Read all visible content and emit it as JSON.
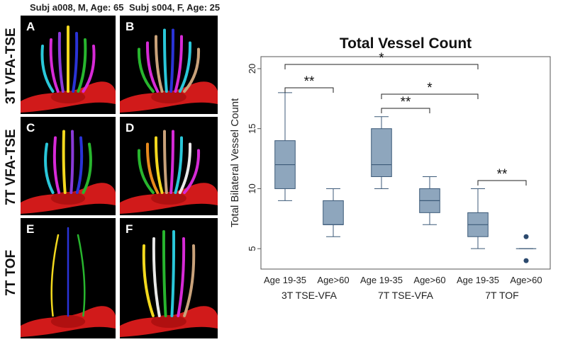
{
  "figure": {
    "columns": [
      {
        "header": "Subj a008, M, Age: 65"
      },
      {
        "header": "Subj s004, F, Age: 25"
      }
    ],
    "rows": [
      {
        "label": "3T VFA-TSE"
      },
      {
        "label": "7T VFA-TSE"
      },
      {
        "label": "7T TOF"
      }
    ],
    "panels": [
      {
        "letter": "A",
        "vessels": [
          "cyan",
          "magenta",
          "purple",
          "yellow",
          "blue",
          "green",
          "magenta"
        ]
      },
      {
        "letter": "B",
        "vessels": [
          "green",
          "magenta",
          "tan",
          "cyan",
          "blue",
          "magenta",
          "cyan",
          "tan"
        ]
      },
      {
        "letter": "C",
        "vessels": [
          "cyan",
          "magenta",
          "yellow",
          "purple",
          "blue",
          "green"
        ]
      },
      {
        "letter": "D",
        "vessels": [
          "green",
          "orange",
          "yellow",
          "tan",
          "magenta",
          "cyan",
          "white",
          "magenta"
        ]
      },
      {
        "letter": "E",
        "vessels": [
          "yellow",
          "blue",
          "green"
        ]
      },
      {
        "letter": "F",
        "vessels": [
          "yellow",
          "white",
          "green",
          "cyan",
          "magenta",
          "tan"
        ]
      }
    ],
    "colors": {
      "red": "#d11a1a",
      "yellow": "#f2d81e",
      "cyan": "#2ac7d9",
      "magenta": "#d62ad6",
      "purple": "#8a3ad8",
      "blue": "#2a33d6",
      "green": "#28b52e",
      "tan": "#c9a27a",
      "orange": "#e88a1c",
      "white": "#e8e8e8"
    }
  },
  "chart_data": {
    "type": "box",
    "title": "Total Vessel Count",
    "ylabel": "Total Bilateral Vessel Count",
    "ylim": [
      3.3,
      21
    ],
    "yticks": [
      5,
      10,
      15,
      20
    ],
    "groups": [
      {
        "name": "3T TSE-VFA",
        "boxes": [
          {
            "label": "Age 19-35",
            "min": 9,
            "q1": 10,
            "median": 12,
            "q3": 14,
            "max": 18,
            "outliers": []
          },
          {
            "label": "Age>60",
            "min": 6,
            "q1": 7,
            "median": 7,
            "q3": 9,
            "max": 10,
            "outliers": []
          }
        ]
      },
      {
        "name": "7T TSE-VFA",
        "boxes": [
          {
            "label": "Age 19-35",
            "min": 10,
            "q1": 11,
            "median": 12,
            "q3": 15,
            "max": 16,
            "outliers": []
          },
          {
            "label": "Age>60",
            "min": 7,
            "q1": 8,
            "median": 9,
            "q3": 10,
            "max": 11,
            "outliers": []
          }
        ]
      },
      {
        "name": "7T TOF",
        "boxes": [
          {
            "label": "Age 19-35",
            "min": 5,
            "q1": 6,
            "median": 7,
            "q3": 8,
            "max": 10,
            "outliers": []
          },
          {
            "label": "Age>60",
            "min": 5,
            "q1": 5,
            "median": 5,
            "q3": 5,
            "max": 5,
            "outliers": [
              4,
              6
            ]
          }
        ]
      }
    ],
    "significance": [
      {
        "from": [
          0,
          0
        ],
        "to": [
          0,
          1
        ],
        "label": "**"
      },
      {
        "from": [
          0,
          0
        ],
        "to": [
          2,
          0
        ],
        "label": "*"
      },
      {
        "from": [
          1,
          0
        ],
        "to": [
          1,
          1
        ],
        "label": "**"
      },
      {
        "from": [
          1,
          0
        ],
        "to": [
          2,
          0
        ],
        "label": "*"
      },
      {
        "from": [
          2,
          0
        ],
        "to": [
          2,
          1
        ],
        "label": "**"
      }
    ],
    "box_color": "#8ea6bd",
    "line_color": "#3c5a78"
  }
}
